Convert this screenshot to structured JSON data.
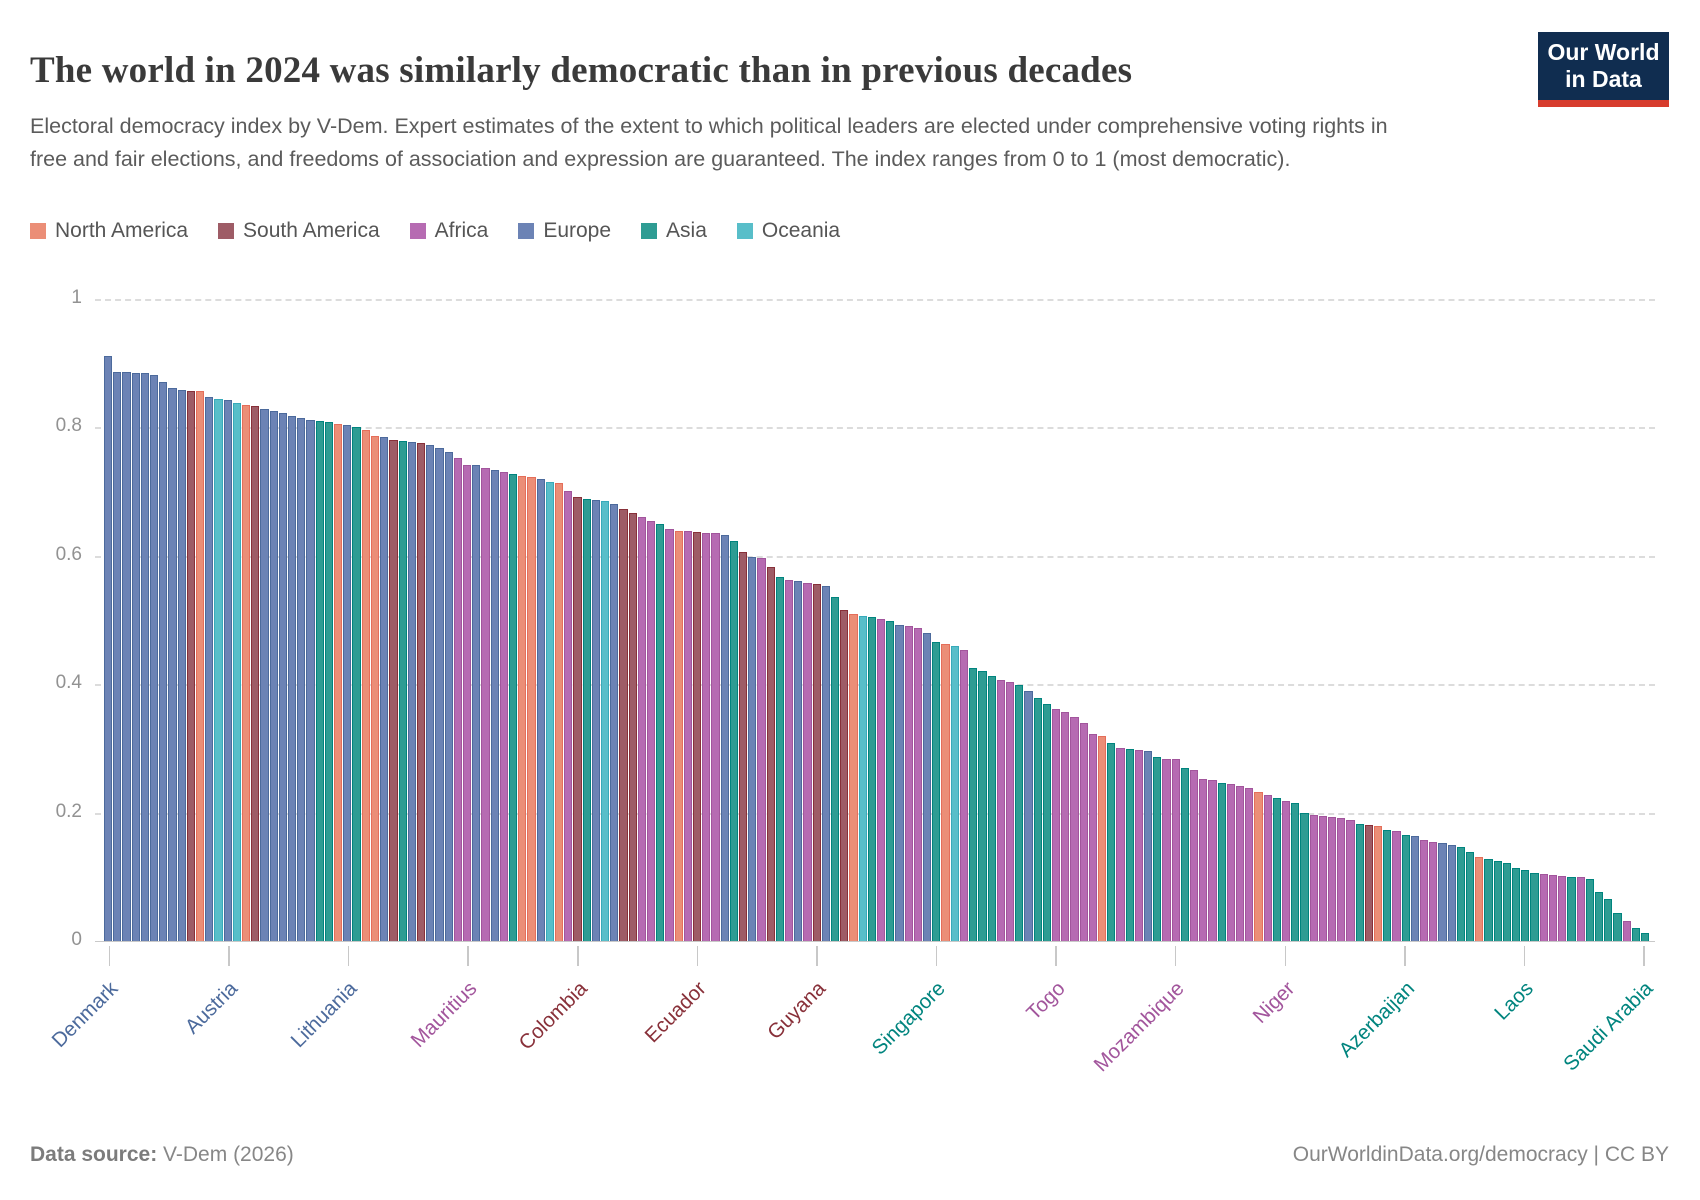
{
  "header": {
    "title": "The world in 2024 was similarly democratic than in previous decades",
    "subtitle": "Electoral democracy index by V-Dem. Expert estimates of the extent to which political leaders are elected under comprehensive voting rights in free and fair elections, and freedoms of association and expression are guaranteed. The index ranges from 0 to 1 (most democratic).",
    "logo": {
      "line1": "Our World",
      "line2": "in Data",
      "bg_color": "#102d50",
      "accent_color": "#d73c2d"
    }
  },
  "legend": {
    "order": [
      "NA",
      "SA",
      "AF",
      "EU",
      "AS",
      "OC"
    ]
  },
  "chart_data": {
    "type": "bar",
    "title": "Electoral democracy index, 2024",
    "xlabel": "",
    "ylabel": "Electoral democracy index",
    "ylim": [
      0,
      1
    ],
    "grid": "dashed-horizontal",
    "legend_position": "top",
    "yticks": [
      {
        "value": 1.0,
        "label": "1"
      },
      {
        "value": 0.8,
        "label": "0.8"
      },
      {
        "value": 0.6,
        "label": "0.6"
      },
      {
        "value": 0.4,
        "label": "0.4"
      },
      {
        "value": 0.2,
        "label": "0.2"
      },
      {
        "value": 0.0,
        "label": "0"
      }
    ],
    "continents": {
      "NA": {
        "name": "North America",
        "fill": "#EB8E77",
        "stroke": "#E56E5A",
        "text": "#D9603F"
      },
      "SA": {
        "name": "South America",
        "fill": "#9E5C66",
        "stroke": "#883039",
        "text": "#883039"
      },
      "AF": {
        "name": "Africa",
        "fill": "#B66BB2",
        "stroke": "#A2559C",
        "text": "#A2559C"
      },
      "EU": {
        "name": "Europe",
        "fill": "#6C83B5",
        "stroke": "#4C6A9C",
        "text": "#4C6A9C"
      },
      "AS": {
        "name": "Asia",
        "fill": "#2E9C93",
        "stroke": "#00847E",
        "text": "#00847E"
      },
      "OC": {
        "name": "Oceania",
        "fill": "#58BEC9",
        "stroke": "#38AABA",
        "text": "#38AABA"
      }
    },
    "bars": [
      [
        0.912,
        "EU",
        "Denmark"
      ],
      [
        0.887,
        "EU"
      ],
      [
        0.886,
        "EU"
      ],
      [
        0.885,
        "EU"
      ],
      [
        0.884,
        "EU"
      ],
      [
        0.881,
        "EU"
      ],
      [
        0.871,
        "EU"
      ],
      [
        0.862,
        "EU"
      ],
      [
        0.858,
        "EU"
      ],
      [
        0.857,
        "SA"
      ],
      [
        0.856,
        "NA"
      ],
      [
        0.847,
        "EU"
      ],
      [
        0.845,
        "OC"
      ],
      [
        0.843,
        "EU",
        "Austria"
      ],
      [
        0.838,
        "OC"
      ],
      [
        0.835,
        "NA"
      ],
      [
        0.833,
        "SA"
      ],
      [
        0.828,
        "EU"
      ],
      [
        0.825,
        "EU"
      ],
      [
        0.822,
        "EU"
      ],
      [
        0.818,
        "EU"
      ],
      [
        0.814,
        "EU"
      ],
      [
        0.812,
        "EU"
      ],
      [
        0.81,
        "AS"
      ],
      [
        0.808,
        "AS"
      ],
      [
        0.806,
        "NA"
      ],
      [
        0.804,
        "EU",
        "Lithuania"
      ],
      [
        0.801,
        "AS"
      ],
      [
        0.796,
        "NA"
      ],
      [
        0.786,
        "NA"
      ],
      [
        0.785,
        "EU"
      ],
      [
        0.781,
        "SA"
      ],
      [
        0.779,
        "AS"
      ],
      [
        0.778,
        "EU"
      ],
      [
        0.776,
        "SA"
      ],
      [
        0.772,
        "EU"
      ],
      [
        0.768,
        "EU"
      ],
      [
        0.762,
        "EU"
      ],
      [
        0.753,
        "AF"
      ],
      [
        0.742,
        "AF",
        "Mauritius"
      ],
      [
        0.741,
        "EU"
      ],
      [
        0.737,
        "AF"
      ],
      [
        0.734,
        "EU"
      ],
      [
        0.731,
        "AF"
      ],
      [
        0.727,
        "AS"
      ],
      [
        0.724,
        "NA"
      ],
      [
        0.722,
        "NA"
      ],
      [
        0.719,
        "EU"
      ],
      [
        0.715,
        "OC"
      ],
      [
        0.713,
        "NA"
      ],
      [
        0.701,
        "AF"
      ],
      [
        0.691,
        "SA",
        "Colombia"
      ],
      [
        0.689,
        "AS"
      ],
      [
        0.687,
        "EU"
      ],
      [
        0.685,
        "OC"
      ],
      [
        0.681,
        "EU"
      ],
      [
        0.673,
        "SA"
      ],
      [
        0.666,
        "SA"
      ],
      [
        0.661,
        "AF"
      ],
      [
        0.655,
        "AF"
      ],
      [
        0.649,
        "AS"
      ],
      [
        0.641,
        "AF"
      ],
      [
        0.639,
        "NA"
      ],
      [
        0.638,
        "AF"
      ],
      [
        0.637,
        "SA",
        "Ecuador"
      ],
      [
        0.636,
        "AF"
      ],
      [
        0.635,
        "AF"
      ],
      [
        0.633,
        "EU"
      ],
      [
        0.623,
        "AS"
      ],
      [
        0.606,
        "SA"
      ],
      [
        0.598,
        "EU"
      ],
      [
        0.597,
        "AF"
      ],
      [
        0.582,
        "SA"
      ],
      [
        0.567,
        "AS"
      ],
      [
        0.562,
        "AF"
      ],
      [
        0.561,
        "EU"
      ],
      [
        0.557,
        "AF"
      ],
      [
        0.556,
        "SA",
        "Guyana"
      ],
      [
        0.553,
        "EU"
      ],
      [
        0.536,
        "AS"
      ],
      [
        0.516,
        "SA"
      ],
      [
        0.51,
        "NA"
      ],
      [
        0.506,
        "OC"
      ],
      [
        0.504,
        "AS"
      ],
      [
        0.501,
        "AF"
      ],
      [
        0.499,
        "AS"
      ],
      [
        0.493,
        "EU"
      ],
      [
        0.491,
        "AF"
      ],
      [
        0.488,
        "AF"
      ],
      [
        0.479,
        "EU"
      ],
      [
        0.466,
        "AS",
        "Singapore"
      ],
      [
        0.463,
        "NA"
      ],
      [
        0.459,
        "OC"
      ],
      [
        0.453,
        "AF"
      ],
      [
        0.426,
        "AS"
      ],
      [
        0.421,
        "AS"
      ],
      [
        0.413,
        "AS"
      ],
      [
        0.406,
        "AF"
      ],
      [
        0.403,
        "AF"
      ],
      [
        0.399,
        "AS"
      ],
      [
        0.389,
        "EU"
      ],
      [
        0.379,
        "AS"
      ],
      [
        0.369,
        "AS"
      ],
      [
        0.361,
        "AF",
        "Togo"
      ],
      [
        0.356,
        "AF"
      ],
      [
        0.349,
        "AF"
      ],
      [
        0.339,
        "AF"
      ],
      [
        0.323,
        "AF"
      ],
      [
        0.319,
        "NA"
      ],
      [
        0.309,
        "AS"
      ],
      [
        0.301,
        "AF"
      ],
      [
        0.299,
        "AS"
      ],
      [
        0.298,
        "AF"
      ],
      [
        0.296,
        "EU"
      ],
      [
        0.286,
        "AS"
      ],
      [
        0.284,
        "AF"
      ],
      [
        0.283,
        "AF",
        "Mozambique"
      ],
      [
        0.269,
        "AS"
      ],
      [
        0.266,
        "AF"
      ],
      [
        0.253,
        "AF"
      ],
      [
        0.251,
        "AF"
      ],
      [
        0.246,
        "AS"
      ],
      [
        0.244,
        "AF"
      ],
      [
        0.241,
        "AF"
      ],
      [
        0.238,
        "AF"
      ],
      [
        0.232,
        "NA"
      ],
      [
        0.228,
        "AF"
      ],
      [
        0.222,
        "AS"
      ],
      [
        0.218,
        "AF",
        "Niger"
      ],
      [
        0.215,
        "AS"
      ],
      [
        0.199,
        "AS"
      ],
      [
        0.196,
        "AF"
      ],
      [
        0.195,
        "AF"
      ],
      [
        0.193,
        "AF"
      ],
      [
        0.191,
        "AF"
      ],
      [
        0.189,
        "AF"
      ],
      [
        0.183,
        "AS"
      ],
      [
        0.181,
        "SA"
      ],
      [
        0.179,
        "NA"
      ],
      [
        0.173,
        "AS"
      ],
      [
        0.171,
        "AF"
      ],
      [
        0.165,
        "AS",
        "Azerbaijan"
      ],
      [
        0.163,
        "EU"
      ],
      [
        0.158,
        "AF"
      ],
      [
        0.155,
        "AF"
      ],
      [
        0.153,
        "EU"
      ],
      [
        0.149,
        "EU"
      ],
      [
        0.147,
        "AS"
      ],
      [
        0.139,
        "AS"
      ],
      [
        0.131,
        "NA"
      ],
      [
        0.127,
        "AS"
      ],
      [
        0.124,
        "AS"
      ],
      [
        0.121,
        "AS"
      ],
      [
        0.113,
        "AS"
      ],
      [
        0.11,
        "AS",
        "Laos"
      ],
      [
        0.106,
        "AS"
      ],
      [
        0.104,
        "AF"
      ],
      [
        0.103,
        "AF"
      ],
      [
        0.101,
        "AF"
      ],
      [
        0.1,
        "AS"
      ],
      [
        0.099,
        "AF"
      ],
      [
        0.097,
        "AS"
      ],
      [
        0.077,
        "AS"
      ],
      [
        0.066,
        "AS"
      ],
      [
        0.043,
        "AS"
      ],
      [
        0.031,
        "AF"
      ],
      [
        0.021,
        "AS"
      ],
      [
        0.012,
        "AS",
        "Saudi Arabia"
      ]
    ]
  },
  "footer": {
    "source_label": "Data source:",
    "source_value": " V-Dem (2026)",
    "right_text": "OurWorldinData.org/democracy | CC BY"
  }
}
